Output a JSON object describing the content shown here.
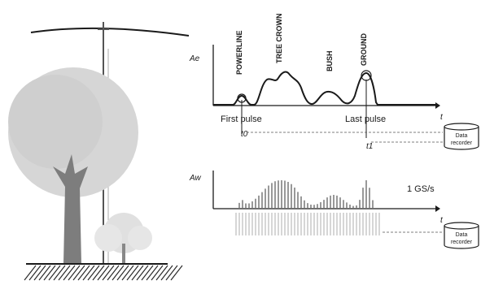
{
  "top_panel": {
    "y_axis_label": "Ae",
    "x_axis_label": "t",
    "targets": [
      "POWERLINE",
      "TREE CROWN",
      "BUSH",
      "GROUND"
    ],
    "first_pulse_label": "First pulse",
    "last_pulse_label": "Last pulse",
    "t0_label": "t0",
    "t1_label": "t1",
    "recorder_line1": "Data",
    "recorder_line2": "recorder"
  },
  "bottom_panel": {
    "y_axis_label": "Aw",
    "x_axis_label": "t",
    "sample_rate": "1 GS/s",
    "recorder_line1": "Data",
    "recorder_line2": "recorder"
  },
  "colors": {
    "ink": "#1a1a1a",
    "tree_crown": "#d4d4d4",
    "trunk": "#7a7a7a",
    "ground_hatch": "#2a2a2a"
  }
}
